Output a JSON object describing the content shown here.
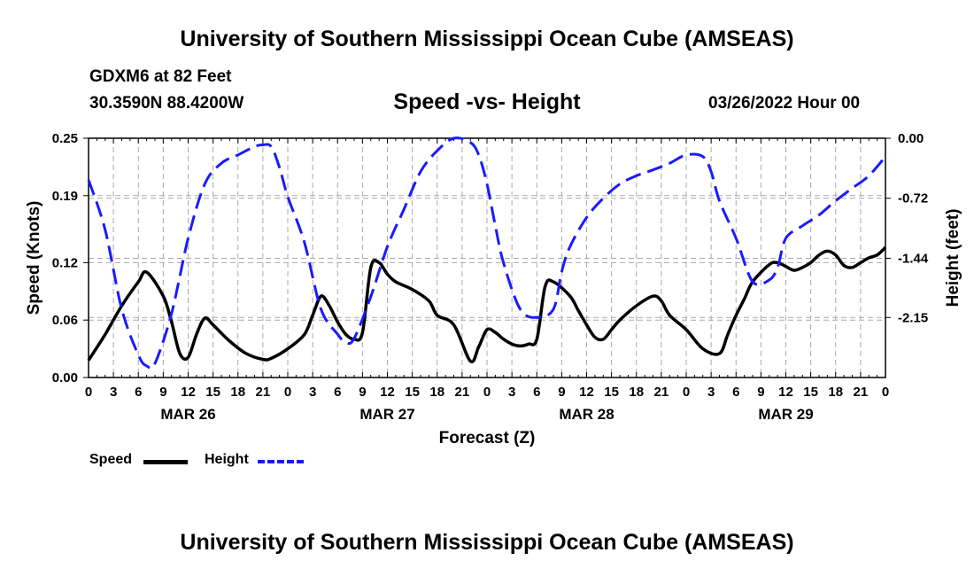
{
  "header": {
    "main_title": "University of Southern Mississippi Ocean Cube (AMSEAS)",
    "station": "GDXM6 at 82 Feet",
    "coordinates": "30.3590N  88.4200W",
    "chart_title": "Speed -vs- Height",
    "datetime": "03/26/2022 Hour 00"
  },
  "footer": {
    "title": "University of Southern Mississippi Ocean Cube (AMSEAS)"
  },
  "legend": {
    "speed_label": "Speed",
    "height_label": "Height"
  },
  "colors": {
    "speed": "#000000",
    "height": "#1a1aff",
    "grid": "#aaaaaa"
  },
  "chart_data": {
    "type": "line",
    "title": "Speed -vs- Height",
    "xlabel": "Forecast (Z)",
    "ylabel": "Speed (Knots)",
    "y2label": "Height (feet)",
    "xlim": [
      0,
      96
    ],
    "ylim": [
      0,
      0.25
    ],
    "y2lim": [
      -2.87,
      0.0
    ],
    "x_ticks": [
      0,
      3,
      6,
      9,
      12,
      15,
      18,
      21,
      24,
      27,
      30,
      33,
      36,
      39,
      42,
      45,
      48,
      51,
      54,
      57,
      60,
      63,
      66,
      69,
      72,
      75,
      78,
      81,
      84,
      87,
      90,
      93,
      96
    ],
    "x_tick_labels": [
      "0",
      "3",
      "6",
      "9",
      "12",
      "15",
      "18",
      "21",
      "0",
      "3",
      "6",
      "9",
      "12",
      "15",
      "18",
      "21",
      "0",
      "3",
      "6",
      "9",
      "12",
      "15",
      "18",
      "21",
      "0",
      "3",
      "6",
      "9",
      "12",
      "15",
      "18",
      "21",
      "0"
    ],
    "day_labels": [
      {
        "x": 12,
        "label": "MAR 26"
      },
      {
        "x": 36,
        "label": "MAR 27"
      },
      {
        "x": 60,
        "label": "MAR 28"
      },
      {
        "x": 84,
        "label": "MAR 29"
      }
    ],
    "y_ticks": [
      0.0,
      0.06,
      0.12,
      0.19,
      0.25
    ],
    "y_tick_labels": [
      "0.00",
      "0.06",
      "0.12",
      "0.19",
      "0.25"
    ],
    "y2_ticks": [
      0.0,
      -0.72,
      -1.44,
      -2.15
    ],
    "y2_tick_labels": [
      "0.00",
      "-0.72",
      "-1.44",
      "-2.15"
    ],
    "series": [
      {
        "name": "Speed",
        "axis": "left",
        "style": "solid",
        "x": [
          0,
          2,
          4,
          6,
          7,
          9,
          10,
          11,
          12,
          13,
          14,
          15,
          17,
          19,
          21,
          22,
          24,
          26,
          27,
          28,
          29,
          30,
          31,
          32,
          33,
          34,
          35,
          36,
          37,
          39,
          41,
          42,
          44,
          46,
          47,
          48,
          49,
          50,
          51,
          52,
          53,
          54,
          55,
          56,
          58,
          59,
          60,
          61,
          62,
          63,
          64,
          66,
          68,
          69,
          70,
          72,
          74,
          76,
          77,
          78,
          79,
          80,
          82,
          83,
          84,
          85,
          86,
          87,
          88,
          89,
          90,
          91,
          92,
          93,
          94,
          95,
          96
        ],
        "values": [
          0.018,
          0.045,
          0.075,
          0.1,
          0.11,
          0.085,
          0.058,
          0.025,
          0.021,
          0.045,
          0.062,
          0.055,
          0.038,
          0.025,
          0.019,
          0.02,
          0.03,
          0.045,
          0.065,
          0.085,
          0.075,
          0.058,
          0.045,
          0.04,
          0.047,
          0.115,
          0.12,
          0.108,
          0.1,
          0.092,
          0.08,
          0.065,
          0.055,
          0.017,
          0.032,
          0.05,
          0.047,
          0.04,
          0.035,
          0.033,
          0.035,
          0.04,
          0.095,
          0.1,
          0.085,
          0.07,
          0.055,
          0.042,
          0.04,
          0.05,
          0.06,
          0.075,
          0.085,
          0.08,
          0.065,
          0.05,
          0.03,
          0.025,
          0.045,
          0.065,
          0.082,
          0.1,
          0.118,
          0.12,
          0.116,
          0.112,
          0.115,
          0.12,
          0.128,
          0.132,
          0.128,
          0.117,
          0.115,
          0.12,
          0.125,
          0.128,
          0.136
        ]
      },
      {
        "name": "Height",
        "axis": "right",
        "style": "dashed",
        "x": [
          0,
          2,
          4,
          6,
          7,
          8,
          10,
          12,
          14,
          16,
          18,
          20,
          21,
          22,
          23,
          24,
          26,
          28,
          30,
          31,
          32,
          34,
          36,
          38,
          40,
          42,
          44,
          46,
          47,
          48,
          49,
          50,
          52,
          54,
          56,
          57,
          58,
          60,
          62,
          64,
          66,
          68,
          70,
          72,
          74,
          75,
          76,
          78,
          80,
          82,
          83,
          84,
          86,
          88,
          90,
          92,
          94,
          96
        ],
        "values": [
          -0.5,
          -1.1,
          -2.05,
          -2.6,
          -2.73,
          -2.7,
          -2.1,
          -1.2,
          -0.55,
          -0.3,
          -0.2,
          -0.1,
          -0.08,
          -0.1,
          -0.35,
          -0.7,
          -1.25,
          -2.05,
          -2.35,
          -2.45,
          -2.4,
          -1.9,
          -1.3,
          -0.85,
          -0.4,
          -0.15,
          0.0,
          -0.05,
          -0.2,
          -0.55,
          -1.05,
          -1.5,
          -2.05,
          -2.15,
          -2.05,
          -1.6,
          -1.3,
          -0.95,
          -0.72,
          -0.55,
          -0.45,
          -0.38,
          -0.3,
          -0.2,
          -0.22,
          -0.4,
          -0.75,
          -1.2,
          -1.72,
          -1.7,
          -1.55,
          -1.2,
          -1.05,
          -0.92,
          -0.75,
          -0.6,
          -0.45,
          -0.22
        ]
      }
    ]
  }
}
